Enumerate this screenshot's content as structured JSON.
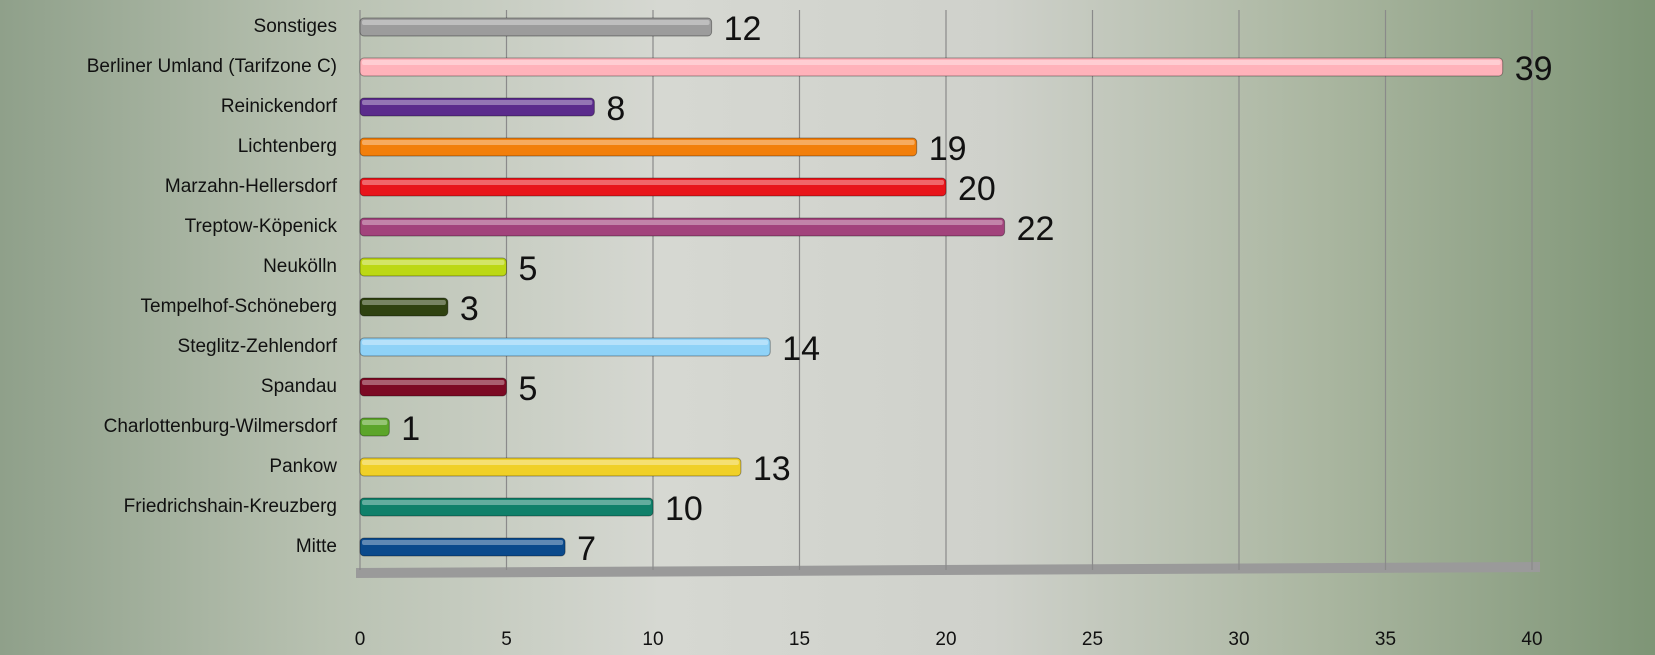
{
  "chart_data": {
    "type": "bar",
    "orientation": "horizontal",
    "categories": [
      "Mitte",
      "Friedrichshain-Kreuzberg",
      "Pankow",
      "Charlottenburg-Wilmersdorf",
      "Spandau",
      "Steglitz-Zehlendorf",
      "Tempelhof-Schöneberg",
      "Neukölln",
      "Treptow-Köpenick",
      "Marzahn-Hellersdorf",
      "Lichtenberg",
      "Reinickendorf",
      "Berliner Umland (Tarifzone C)",
      "Sonstiges"
    ],
    "values": [
      7,
      10,
      13,
      1,
      5,
      14,
      3,
      5,
      22,
      20,
      19,
      8,
      39,
      12
    ],
    "colors": [
      "#0b4a8c",
      "#10806a",
      "#f0d027",
      "#5ca52a",
      "#7c0a24",
      "#8fd2f7",
      "#2f4210",
      "#bcd814",
      "#a2437c",
      "#e8151b",
      "#f27f0b",
      "#5b2b8c",
      "#ffb2ba",
      "#9c9c9c"
    ],
    "xlim": [
      0,
      40
    ],
    "xticks": [
      0,
      5,
      10,
      15,
      20,
      25,
      30,
      35,
      40
    ],
    "grid": true
  }
}
